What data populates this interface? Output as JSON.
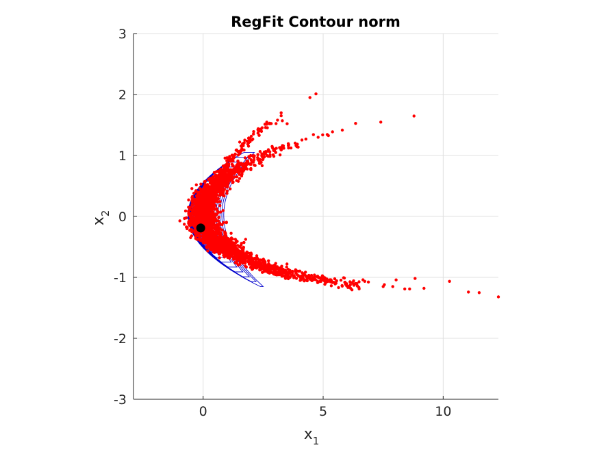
{
  "chart_data": {
    "type": "scatter",
    "title": "RegFit Contour norm",
    "xlabel": "x",
    "xlabel_subscript": "1",
    "ylabel": "x",
    "ylabel_subscript": "2",
    "xlim": [
      -2.9,
      12.3
    ],
    "ylim": [
      -3,
      3
    ],
    "xticks": [
      0,
      5,
      10
    ],
    "yticks": [
      -3,
      -2,
      -1,
      0,
      1,
      2,
      3
    ],
    "xtick_labels": [
      "0",
      "5",
      "10"
    ],
    "ytick_labels": [
      "-3",
      "-2",
      "-1",
      "0",
      "1",
      "2",
      "3"
    ],
    "grid": true,
    "colors": {
      "samples": "#ff0000",
      "contours": "#0000cc",
      "contour_fill": "#3333ee",
      "marker": "#000000",
      "grid": "#e0e0e0",
      "axis": "#262626"
    },
    "marker_point": {
      "x": -0.1,
      "y": -0.19
    },
    "banana_curve": {
      "a": 0.3,
      "b": -0.2,
      "comment_free": true
    },
    "sample_outliers": [
      {
        "x": 4.45,
        "y": 1.95
      },
      {
        "x": 4.7,
        "y": 2.01
      },
      {
        "x": 3.25,
        "y": 1.7
      },
      {
        "x": 3.25,
        "y": 1.65
      },
      {
        "x": 3.5,
        "y": 1.52
      },
      {
        "x": 3.1,
        "y": 1.58
      },
      {
        "x": 3.3,
        "y": 1.57
      },
      {
        "x": 9.2,
        "y": -1.18
      },
      {
        "x": 8.6,
        "y": -1.19
      },
      {
        "x": 8.4,
        "y": -1.19
      },
      {
        "x": 7.9,
        "y": -1.15
      },
      {
        "x": 7.5,
        "y": -1.15
      },
      {
        "x": 7.55,
        "y": -1.12
      },
      {
        "x": 11.05,
        "y": -1.24
      },
      {
        "x": 11.5,
        "y": -1.25
      },
      {
        "x": 12.3,
        "y": -1.32
      }
    ],
    "contour_levels": [
      0.55,
      0.62,
      0.7,
      0.78,
      0.86,
      0.94,
      1.02,
      1.1
    ]
  }
}
